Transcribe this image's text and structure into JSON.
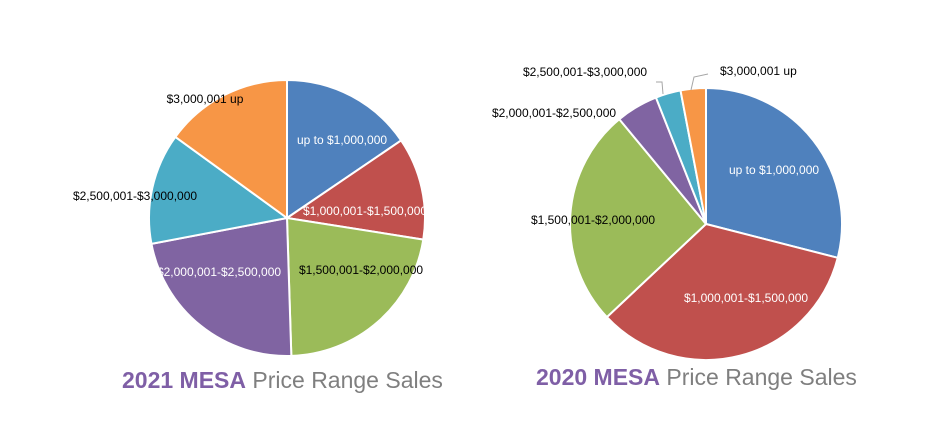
{
  "chart_data": [
    {
      "type": "pie",
      "title_bold": "2021 MESA",
      "title_rest": " Price Range Sales",
      "categories": [
        "up to $1,000,000",
        "$1,000,001-$1,500,000",
        "$1,500,001-$2,000,000",
        "$2,000,001-$2,500,000",
        "$2,500,001-$3,000,000",
        "$3,000,001  up"
      ],
      "values": [
        15.5,
        12,
        22,
        22.5,
        13,
        15
      ],
      "colors": [
        "#4f81bd",
        "#c0504d",
        "#9bbb59",
        "#8064a2",
        "#4bacc6",
        "#f79646"
      ]
    },
    {
      "type": "pie",
      "title_bold": "2020 MESA",
      "title_rest": " Price Range Sales",
      "categories": [
        "up to $1,000,000",
        "$1,000,001-$1,500,000",
        "$1,500,001-$2,000,000",
        "$2,000,001-$2,500,000",
        "$2,500,001-$3,000,000",
        "$3,000,001 up"
      ],
      "values": [
        29,
        34,
        26,
        5,
        3,
        3
      ],
      "colors": [
        "#4f81bd",
        "#c0504d",
        "#9bbb59",
        "#8064a2",
        "#4bacc6",
        "#f79646"
      ]
    }
  ]
}
